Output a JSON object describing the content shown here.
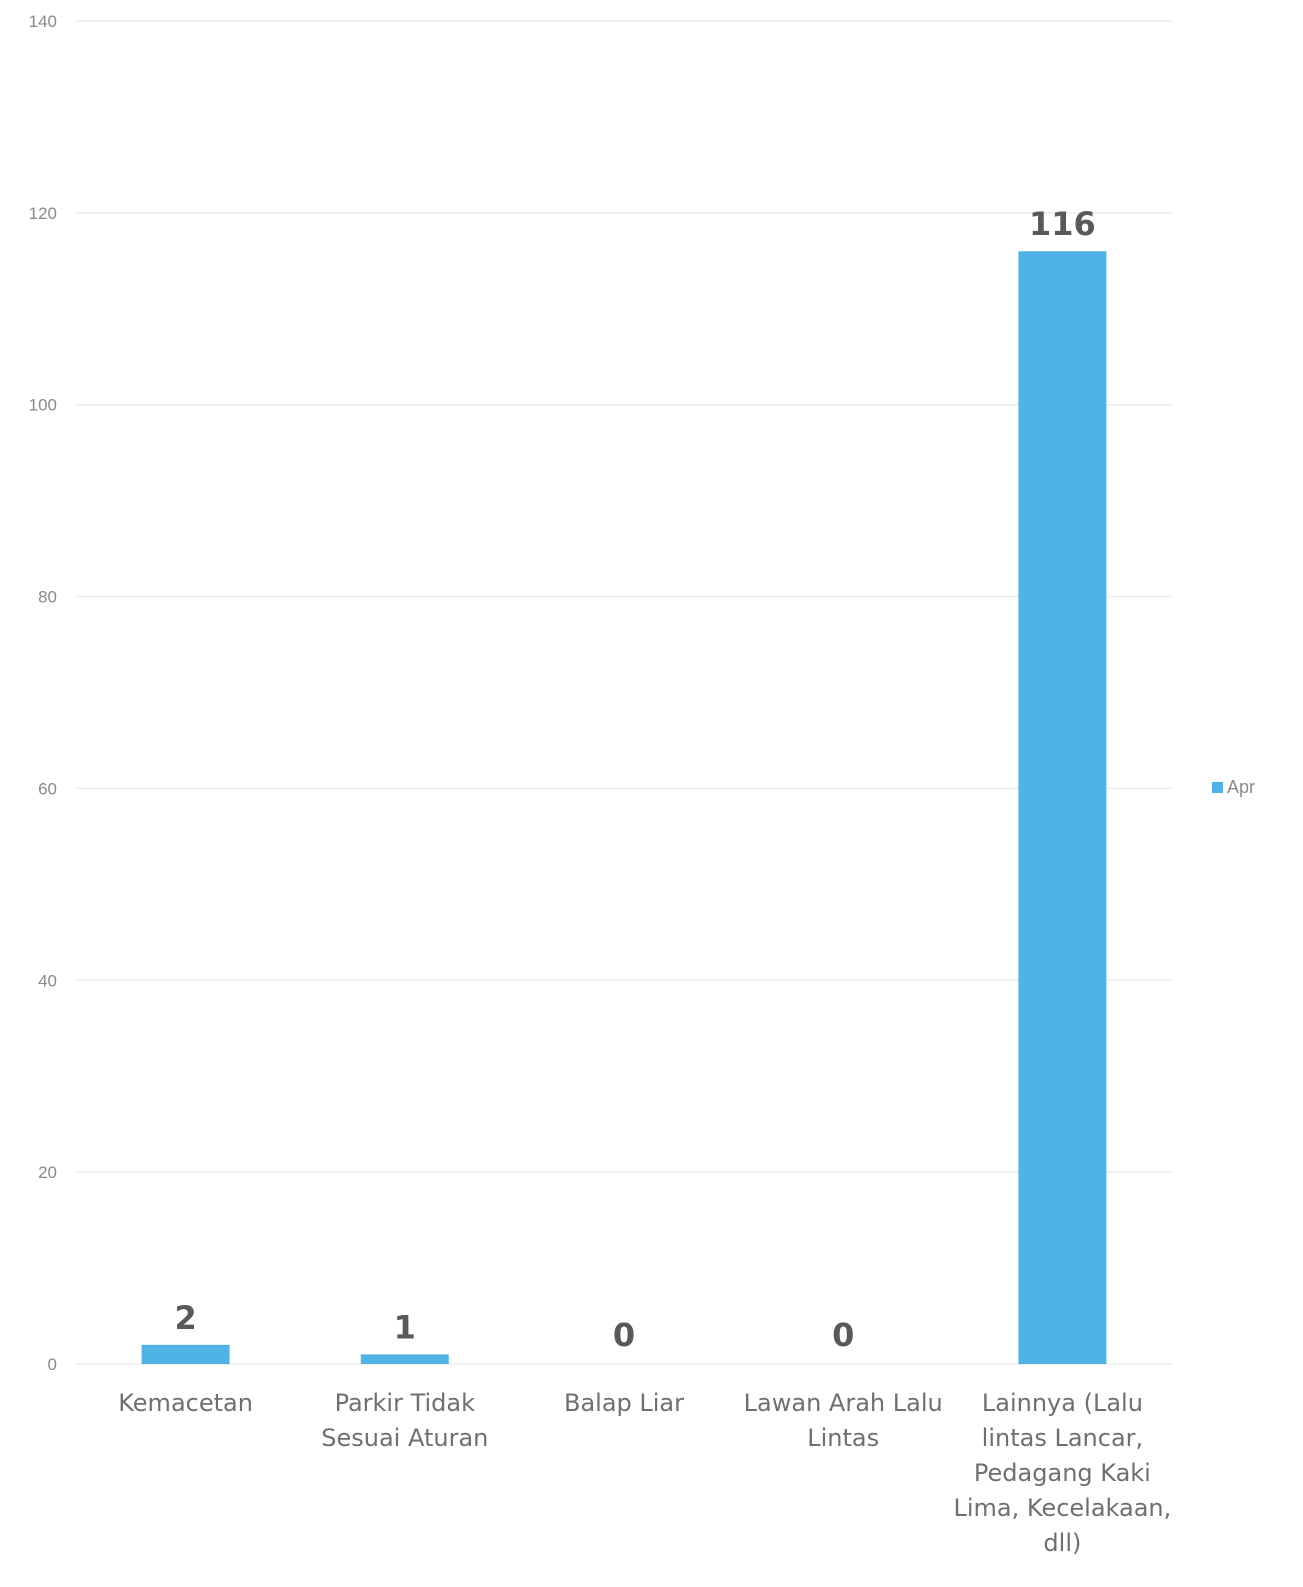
{
  "chart_data": {
    "type": "bar",
    "categories": [
      [
        "Kemacetan"
      ],
      [
        "Parkir Tidak",
        "Sesuai Aturan"
      ],
      [
        "Balap Liar"
      ],
      [
        "Lawan Arah Lalu",
        "Lintas"
      ],
      [
        "Lainnya (Lalu",
        "lintas Lancar,",
        "Pedagang Kaki",
        "Lima, Kecelakaan,",
        "dll)"
      ]
    ],
    "series": [
      {
        "name": "Apr",
        "values": [
          2,
          1,
          0,
          0,
          116
        ]
      }
    ],
    "data_labels": [
      "2",
      "1",
      "0",
      "0",
      "116"
    ],
    "ylim": [
      0,
      140
    ],
    "yticks": [
      0,
      20,
      40,
      60,
      80,
      100,
      120,
      140
    ],
    "grid": true,
    "legend_position": "right",
    "colors": {
      "bar": "#4fb3e6",
      "grid": "#ececec",
      "tick_text": "#8a8a8a",
      "label_text": "#595959"
    }
  }
}
